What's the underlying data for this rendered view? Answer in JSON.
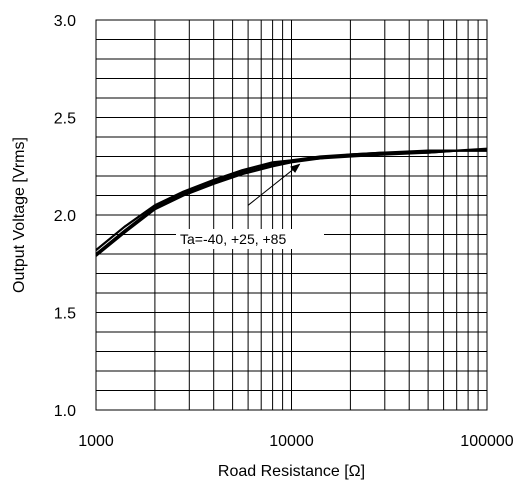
{
  "chart_data": {
    "type": "line",
    "title": "",
    "xlabel": "Road Resistance [Ω]",
    "ylabel": "Output Voltage [Vrms]",
    "x_scale": "log",
    "xlim": [
      1000,
      100000
    ],
    "ylim": [
      1.0,
      3.0
    ],
    "x_ticks": [
      1000,
      10000,
      100000
    ],
    "x_tick_labels": [
      "1000",
      "10000",
      "100000"
    ],
    "y_ticks": [
      1.0,
      1.5,
      2.0,
      2.5,
      3.0
    ],
    "y_tick_labels": [
      "1.0",
      "1.5",
      "2.0",
      "2.5",
      "3.0"
    ],
    "y_minor_step": 0.1,
    "grid": true,
    "legend": "none",
    "line_color": "#000000",
    "series": [
      {
        "x": [
          1000,
          1400,
          2000,
          2800,
          4000,
          5600,
          8000,
          10000,
          14000,
          20000,
          30000,
          50000,
          70000,
          100000
        ],
        "values": [
          1.82,
          1.94,
          2.05,
          2.12,
          2.18,
          2.23,
          2.27,
          2.28,
          2.3,
          2.31,
          2.32,
          2.33,
          2.33,
          2.34
        ]
      },
      {
        "x": [
          1000,
          1400,
          2000,
          2800,
          4000,
          5600,
          8000,
          10000,
          14000,
          20000,
          30000,
          50000,
          70000,
          100000
        ],
        "values": [
          1.8,
          1.92,
          2.04,
          2.11,
          2.17,
          2.22,
          2.26,
          2.28,
          2.29,
          2.31,
          2.32,
          2.32,
          2.33,
          2.33
        ]
      },
      {
        "x": [
          1000,
          1400,
          2000,
          2800,
          4000,
          5600,
          8000,
          10000,
          14000,
          20000,
          30000,
          50000,
          70000,
          100000
        ],
        "values": [
          1.79,
          1.91,
          2.03,
          2.1,
          2.16,
          2.21,
          2.25,
          2.27,
          2.29,
          2.3,
          2.31,
          2.32,
          2.33,
          2.33
        ]
      }
    ],
    "annotation": {
      "text": "Ta=-40, +25, +85",
      "arrow_to": [
        11000,
        2.26
      ],
      "arrow_from": [
        6000,
        2.05
      ]
    }
  }
}
